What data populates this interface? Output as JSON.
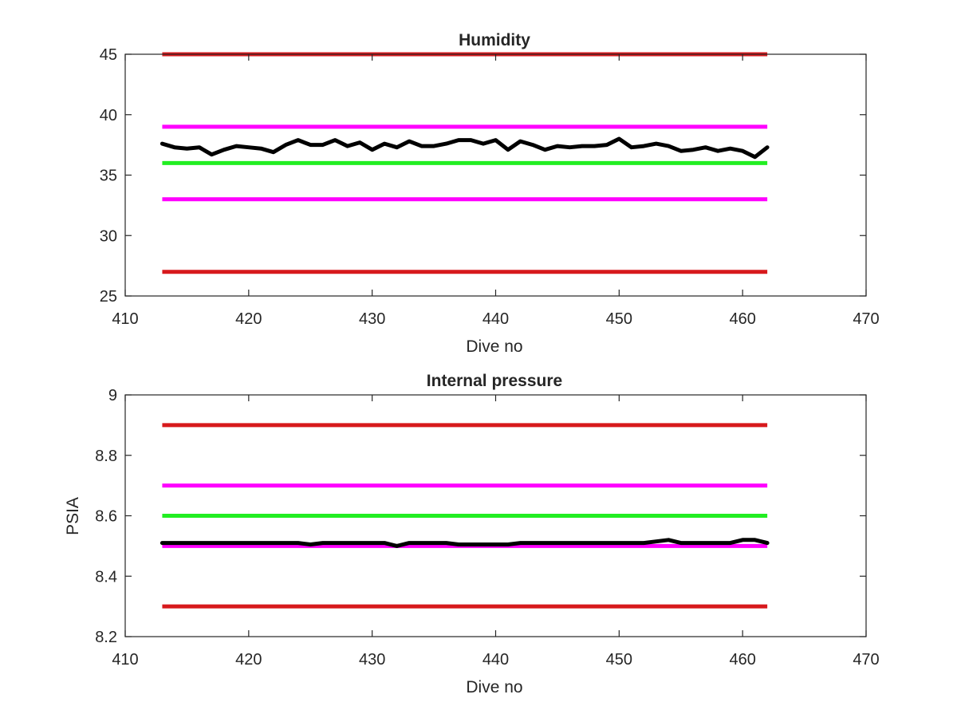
{
  "chart_data": [
    {
      "type": "line",
      "title": "Humidity",
      "xlabel": "Dive no",
      "ylabel": "",
      "xlim": [
        410,
        470
      ],
      "ylim": [
        25,
        45
      ],
      "xticks": [
        410,
        420,
        430,
        440,
        450,
        460,
        470
      ],
      "xtick_labels": [
        "410",
        "420",
        "430",
        "440",
        "450",
        "460",
        "470"
      ],
      "yticks": [
        25,
        30,
        35,
        40,
        45
      ],
      "ytick_labels": [
        "25",
        "30",
        "35",
        "40",
        "45"
      ],
      "grid": false,
      "threshold_lines": [
        {
          "y": 45,
          "x": [
            413,
            462
          ],
          "color": "#d7191c"
        },
        {
          "y": 39,
          "x": [
            413,
            462
          ],
          "color": "#ff00ff"
        },
        {
          "y": 36,
          "x": [
            413,
            462
          ],
          "color": "#22ee22"
        },
        {
          "y": 33,
          "x": [
            413,
            462
          ],
          "color": "#ff00ff"
        },
        {
          "y": 27,
          "x": [
            413,
            462
          ],
          "color": "#d7191c"
        }
      ],
      "series": [
        {
          "color": "#000000",
          "x": [
            413,
            414,
            415,
            416,
            417,
            418,
            419,
            420,
            421,
            422,
            423,
            424,
            425,
            426,
            427,
            428,
            429,
            430,
            431,
            432,
            433,
            434,
            435,
            436,
            437,
            438,
            439,
            440,
            441,
            442,
            443,
            444,
            445,
            446,
            447,
            448,
            449,
            450,
            451,
            452,
            453,
            454,
            455,
            456,
            457,
            458,
            459,
            460,
            461,
            462
          ],
          "values": [
            37.6,
            37.3,
            37.2,
            37.3,
            36.7,
            37.1,
            37.4,
            37.3,
            37.2,
            36.9,
            37.5,
            37.9,
            37.5,
            37.5,
            37.9,
            37.4,
            37.7,
            37.1,
            37.6,
            37.3,
            37.8,
            37.4,
            37.4,
            37.6,
            37.9,
            37.9,
            37.6,
            37.9,
            37.1,
            37.8,
            37.5,
            37.1,
            37.4,
            37.3,
            37.4,
            37.4,
            37.5,
            38.0,
            37.3,
            37.4,
            37.6,
            37.4,
            37.0,
            37.1,
            37.3,
            37.0,
            37.2,
            37.0,
            36.5,
            37.3
          ]
        }
      ]
    },
    {
      "type": "line",
      "title": "Internal pressure",
      "xlabel": "Dive no",
      "ylabel": "PSIA",
      "xlim": [
        410,
        470
      ],
      "ylim": [
        8.2,
        9.0
      ],
      "xticks": [
        410,
        420,
        430,
        440,
        450,
        460,
        470
      ],
      "xtick_labels": [
        "410",
        "420",
        "430",
        "440",
        "450",
        "460",
        "470"
      ],
      "yticks": [
        8.2,
        8.4,
        8.6,
        8.8,
        9.0
      ],
      "ytick_labels": [
        "8.2",
        "8.4",
        "8.6",
        "8.8",
        "9"
      ],
      "grid": false,
      "threshold_lines": [
        {
          "y": 8.9,
          "x": [
            413,
            462
          ],
          "color": "#d7191c"
        },
        {
          "y": 8.7,
          "x": [
            413,
            462
          ],
          "color": "#ff00ff"
        },
        {
          "y": 8.6,
          "x": [
            413,
            462
          ],
          "color": "#22ee22"
        },
        {
          "y": 8.5,
          "x": [
            413,
            462
          ],
          "color": "#ff00ff"
        },
        {
          "y": 8.3,
          "x": [
            413,
            462
          ],
          "color": "#d7191c"
        }
      ],
      "series": [
        {
          "color": "#000000",
          "x": [
            413,
            414,
            415,
            416,
            417,
            418,
            419,
            420,
            421,
            422,
            423,
            424,
            425,
            426,
            427,
            428,
            429,
            430,
            431,
            432,
            433,
            434,
            435,
            436,
            437,
            438,
            439,
            440,
            441,
            442,
            443,
            444,
            445,
            446,
            447,
            448,
            449,
            450,
            451,
            452,
            453,
            454,
            455,
            456,
            457,
            458,
            459,
            460,
            461,
            462
          ],
          "values": [
            8.51,
            8.51,
            8.51,
            8.51,
            8.51,
            8.51,
            8.51,
            8.51,
            8.51,
            8.51,
            8.51,
            8.51,
            8.505,
            8.51,
            8.51,
            8.51,
            8.51,
            8.51,
            8.51,
            8.5,
            8.51,
            8.51,
            8.51,
            8.51,
            8.505,
            8.505,
            8.505,
            8.505,
            8.505,
            8.51,
            8.51,
            8.51,
            8.51,
            8.51,
            8.51,
            8.51,
            8.51,
            8.51,
            8.51,
            8.51,
            8.515,
            8.52,
            8.51,
            8.51,
            8.51,
            8.51,
            8.51,
            8.52,
            8.52,
            8.51
          ]
        }
      ]
    }
  ]
}
